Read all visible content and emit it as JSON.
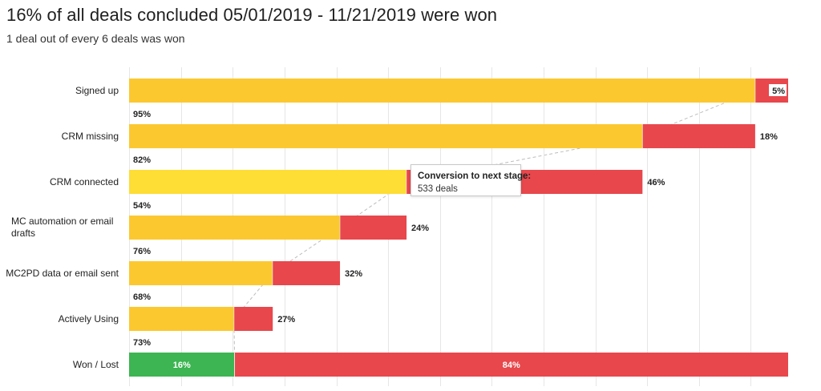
{
  "title": "16% of all deals concluded 05/01/2019 - 11/21/2019 were won",
  "subtitle": "1 deal out of every 6 deals was won",
  "colors": {
    "passed": "#fcc82f",
    "passed_highlight": "#fedd35",
    "dropped": "#e8474c",
    "won": "#3cb552",
    "grid": "#e6e6e6",
    "connector": "#bdbdbd"
  },
  "tooltip": {
    "title": "Conversion to next stage:",
    "value": "533 deals"
  },
  "chart_data": {
    "type": "bar",
    "orientation": "horizontal",
    "stacked": true,
    "categories": [
      "Signed up",
      "CRM missing",
      "CRM connected",
      "MC automation or email drafts",
      "MC2PD data or email sent",
      "Actively Using",
      "Won / Lost"
    ],
    "category_lines": [
      [
        "Signed up"
      ],
      [
        "CRM missing"
      ],
      [
        "CRM connected"
      ],
      [
        "MC automation or email",
        "drafts"
      ],
      [
        "MC2PD data or email sent"
      ],
      [
        "Actively Using"
      ],
      [
        "Won / Lost"
      ]
    ],
    "series": [
      {
        "role": "passed",
        "values": [
          95,
          82,
          54,
          76,
          68,
          73,
          16
        ]
      },
      {
        "role": "dropped",
        "values": [
          5,
          18,
          46,
          24,
          32,
          27,
          84
        ]
      }
    ],
    "scaled_totals": [
      100,
      95,
      77.9,
      42.1,
      32.0,
      21.8,
      100
    ],
    "passed_labels": [
      "95%",
      "82%",
      "54%",
      "76%",
      "68%",
      "73%",
      "16%"
    ],
    "dropped_labels": [
      "5%",
      "18%",
      "46%",
      "24%",
      "32%",
      "27%",
      "84%"
    ],
    "highlight_row": 2,
    "grid": true
  }
}
